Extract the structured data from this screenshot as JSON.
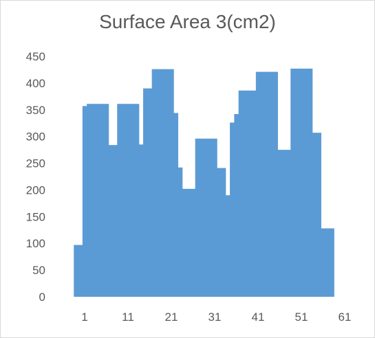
{
  "chart_data": {
    "type": "bar",
    "title": "Surface Area 3(cm2)",
    "xlabel": "",
    "ylabel": "",
    "ylim": [
      0,
      450
    ],
    "y_ticks": [
      "0",
      "50",
      "100",
      "150",
      "200",
      "250",
      "300",
      "350",
      "400",
      "450"
    ],
    "x_ticks": [
      {
        "label": "1",
        "x": 1
      },
      {
        "label": "11",
        "x": 11
      },
      {
        "label": "21",
        "x": 21
      },
      {
        "label": "31",
        "x": 31
      },
      {
        "label": "41",
        "x": 41
      },
      {
        "label": "51",
        "x": 51
      },
      {
        "label": "61",
        "x": 61
      }
    ],
    "grid": false,
    "legend": "none",
    "bar_color": "#5b9bd5",
    "x": [
      -1,
      0,
      1,
      2,
      3,
      4,
      5,
      6,
      7,
      8,
      9,
      10,
      11,
      12,
      13,
      14,
      15,
      16,
      17,
      18,
      19,
      20,
      21,
      22,
      23,
      24,
      25,
      26,
      27,
      28,
      29,
      30,
      31,
      32,
      33,
      34,
      35,
      36,
      37,
      38,
      39,
      40,
      41,
      42,
      43,
      44,
      45,
      46,
      47,
      48,
      49,
      50,
      51,
      52,
      53,
      54,
      55,
      56,
      57,
      58
    ],
    "values": [
      97,
      97,
      357,
      361,
      361,
      361,
      361,
      361,
      284,
      284,
      361,
      361,
      361,
      361,
      361,
      285,
      390,
      390,
      426,
      426,
      426,
      426,
      426,
      344,
      242,
      202,
      202,
      202,
      296,
      296,
      296,
      296,
      296,
      241,
      241,
      190,
      326,
      342,
      386,
      386,
      386,
      386,
      421,
      421,
      421,
      421,
      421,
      275,
      275,
      275,
      427,
      427,
      427,
      427,
      427,
      307,
      307,
      128,
      128,
      128
    ]
  }
}
